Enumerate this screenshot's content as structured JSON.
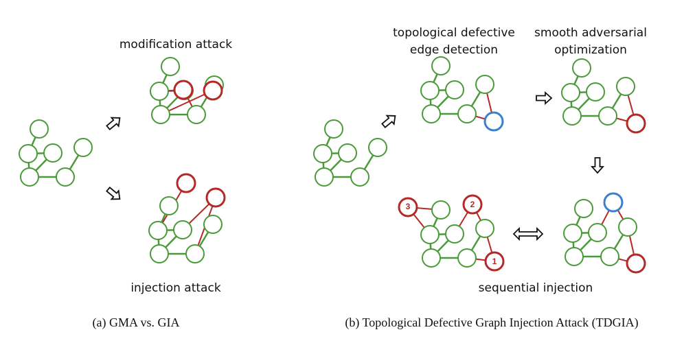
{
  "panel_a": {
    "label_top": "modification attack",
    "label_bottom": "injection attack",
    "caption": "(a)  GMA vs. GIA"
  },
  "panel_b": {
    "label_step1_line1": "topological defective",
    "label_step1_line2": "edge detection",
    "label_step2_line1": "smooth adversarial",
    "label_step2_line2": "optimization",
    "label_step3": "sequential injection",
    "node_numbers": [
      "1",
      "2",
      "3"
    ],
    "caption": "(b)  Topological Defective Graph Injection Attack (TDGIA)"
  },
  "colors": {
    "original": "#4a9a3a",
    "injected": "#b52828",
    "defective": "#3a7fd0",
    "arrow": "#111111"
  },
  "icons": {
    "step_arrow": "hollow-arrow-icon",
    "bidirectional_arrow": "double-arrow-icon"
  }
}
